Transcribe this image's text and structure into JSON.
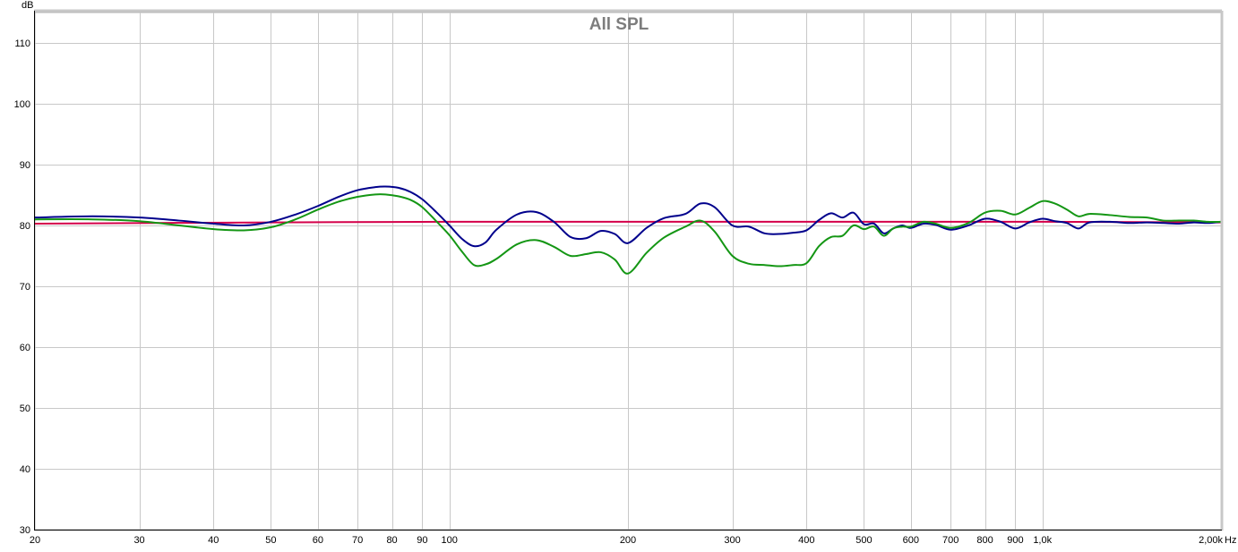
{
  "chart_data": {
    "type": "line",
    "title": "All SPL",
    "ylabel": "dB",
    "xunit": "Hz",
    "xscale": "log",
    "xlim": [
      20,
      2000
    ],
    "ylim": [
      30,
      115
    ],
    "grid": true,
    "legend": "none",
    "y_ticks": [
      30,
      40,
      50,
      60,
      70,
      80,
      90,
      100,
      110
    ],
    "x_ticks": [
      {
        "value": 20,
        "label": "20"
      },
      {
        "value": 30,
        "label": "30"
      },
      {
        "value": 40,
        "label": "40"
      },
      {
        "value": 50,
        "label": "50"
      },
      {
        "value": 60,
        "label": "60"
      },
      {
        "value": 70,
        "label": "70"
      },
      {
        "value": 80,
        "label": "80"
      },
      {
        "value": 90,
        "label": "90"
      },
      {
        "value": 100,
        "label": "100"
      },
      {
        "value": 200,
        "label": "200"
      },
      {
        "value": 300,
        "label": "300"
      },
      {
        "value": 400,
        "label": "400"
      },
      {
        "value": 500,
        "label": "500"
      },
      {
        "value": 600,
        "label": "600"
      },
      {
        "value": 700,
        "label": "700"
      },
      {
        "value": 800,
        "label": "800"
      },
      {
        "value": 900,
        "label": "900"
      },
      {
        "value": 1000,
        "label": "1,0k"
      },
      {
        "value": 2000,
        "label": "2,00k"
      }
    ],
    "series": [
      {
        "color": "#d4004a",
        "x": [
          20,
          50,
          100,
          200,
          500,
          1000,
          2000
        ],
        "y": [
          80.3,
          80.5,
          80.6,
          80.6,
          80.6,
          80.6,
          80.5
        ]
      },
      {
        "color": "#00008c",
        "x": [
          20,
          25,
          30,
          35,
          40,
          45,
          50,
          55,
          60,
          65,
          70,
          75,
          78,
          82,
          86,
          90,
          95,
          100,
          105,
          110,
          115,
          120,
          130,
          140,
          150,
          160,
          170,
          180,
          190,
          200,
          215,
          230,
          250,
          265,
          280,
          300,
          320,
          340,
          360,
          380,
          400,
          420,
          440,
          460,
          480,
          500,
          520,
          540,
          560,
          580,
          600,
          630,
          660,
          700,
          750,
          800,
          850,
          900,
          950,
          1000,
          1050,
          1100,
          1150,
          1200,
          1300,
          1400,
          1500,
          1600,
          1700,
          1800,
          1900,
          2000
        ],
        "y": [
          81.3,
          81.5,
          81.3,
          80.8,
          80.3,
          80.0,
          80.6,
          81.8,
          83.2,
          84.7,
          85.8,
          86.3,
          86.4,
          86.2,
          85.5,
          84.3,
          82.2,
          80.0,
          77.8,
          76.6,
          77.2,
          79.3,
          81.8,
          82.2,
          80.6,
          78.1,
          77.9,
          79.1,
          78.6,
          77.1,
          79.6,
          81.2,
          81.9,
          83.6,
          83.0,
          80.0,
          79.8,
          78.7,
          78.6,
          78.8,
          79.2,
          80.9,
          82.0,
          81.3,
          82.1,
          80.2,
          80.3,
          78.7,
          79.5,
          80.0,
          79.6,
          80.3,
          80.1,
          79.3,
          80.0,
          81.1,
          80.6,
          79.5,
          80.5,
          81.1,
          80.7,
          80.4,
          79.5,
          80.5,
          80.6,
          80.4,
          80.5,
          80.4,
          80.3,
          80.5,
          80.4,
          80.6
        ]
      },
      {
        "color": "#149614",
        "x": [
          20,
          25,
          30,
          35,
          40,
          45,
          50,
          55,
          60,
          65,
          70,
          75,
          78,
          82,
          86,
          90,
          95,
          100,
          105,
          110,
          115,
          120,
          130,
          140,
          150,
          160,
          170,
          180,
          190,
          200,
          215,
          230,
          250,
          265,
          280,
          300,
          320,
          340,
          360,
          380,
          400,
          420,
          440,
          460,
          480,
          500,
          520,
          540,
          560,
          580,
          600,
          630,
          660,
          700,
          750,
          800,
          850,
          900,
          950,
          1000,
          1050,
          1100,
          1150,
          1200,
          1300,
          1400,
          1500,
          1600,
          1700,
          1800,
          1900,
          2000
        ],
        "y": [
          81.0,
          81.0,
          80.7,
          80.0,
          79.4,
          79.2,
          79.7,
          81.0,
          82.6,
          83.9,
          84.7,
          85.1,
          85.1,
          84.8,
          84.2,
          83.0,
          80.7,
          78.4,
          75.7,
          73.5,
          73.6,
          74.5,
          76.9,
          77.6,
          76.5,
          75.0,
          75.3,
          75.6,
          74.4,
          72.1,
          75.5,
          78.0,
          79.8,
          80.8,
          79.0,
          75.0,
          73.7,
          73.5,
          73.3,
          73.5,
          73.8,
          76.6,
          78.1,
          78.3,
          80.0,
          79.4,
          79.8,
          78.3,
          79.5,
          79.8,
          79.8,
          80.6,
          80.3,
          79.6,
          80.4,
          82.1,
          82.4,
          81.8,
          82.9,
          84.0,
          83.6,
          82.6,
          81.5,
          81.9,
          81.7,
          81.4,
          81.3,
          80.8,
          80.8,
          80.8,
          80.6,
          80.6
        ]
      }
    ]
  }
}
